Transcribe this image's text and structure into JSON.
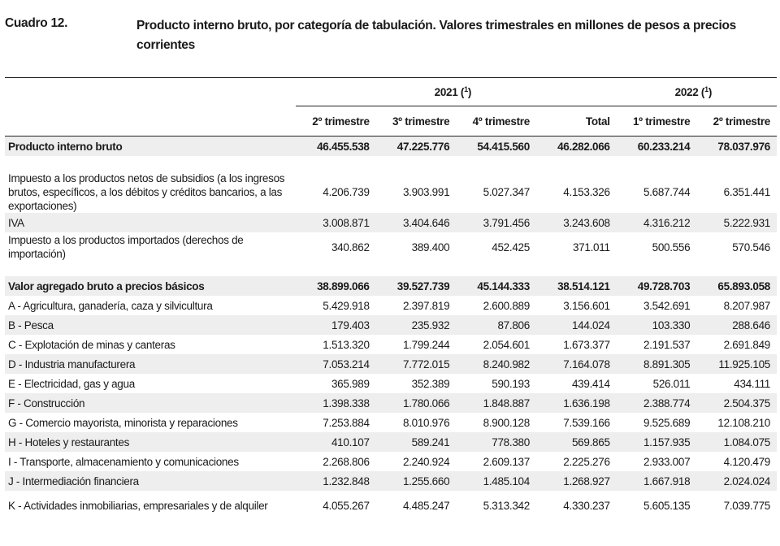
{
  "header": {
    "label": "Cuadro 12.",
    "title": "Producto interno bruto, por categoría de tabulación. Valores trimestrales en millones de pesos a precios corrientes"
  },
  "table": {
    "years": [
      {
        "label": "2021 (",
        "note": "1",
        "close": ")"
      },
      {
        "label": "2022 (",
        "note": "1",
        "close": ")"
      }
    ],
    "periods": [
      "2º trimestre",
      "3º trimestre",
      "4º trimestre",
      "Total",
      "1º trimestre",
      "2º trimestre"
    ],
    "rows": [
      {
        "label": "Producto interno bruto",
        "values": [
          "46.455.538",
          "47.225.776",
          "54.415.560",
          "46.282.066",
          "60.233.214",
          "78.037.976"
        ],
        "bold": true,
        "shade": true,
        "h": "r1"
      },
      {
        "spacer": true
      },
      {
        "label": "Impuesto a los productos netos de subsidios (a los ingresos brutos, específicos, a los débitos y créditos bancarios, a las exportaciones)",
        "values": [
          "4.206.739",
          "3.903.991",
          "5.027.347",
          "4.153.326",
          "5.687.744",
          "6.351.441"
        ],
        "h": "r3"
      },
      {
        "label": "IVA",
        "values": [
          "3.008.871",
          "3.404.646",
          "3.791.456",
          "3.243.608",
          "4.316.212",
          "5.222.931"
        ],
        "shade": true,
        "h": "r1"
      },
      {
        "label": "Impuesto a los productos importados (derechos de importación)",
        "values": [
          "340.862",
          "389.400",
          "452.425",
          "371.011",
          "500.556",
          "570.546"
        ],
        "h": "r2"
      },
      {
        "spacer": true
      },
      {
        "label": "Valor agregado bruto a precios básicos",
        "values": [
          "38.899.066",
          "39.527.739",
          "45.144.333",
          "38.514.121",
          "49.728.703",
          "65.893.058"
        ],
        "bold": true,
        "shade": true,
        "h": "r1"
      },
      {
        "label": "A - Agricultura, ganadería, caza y silvicultura",
        "values": [
          "5.429.918",
          "2.397.819",
          "2.600.889",
          "3.156.601",
          "3.542.691",
          "8.207.987"
        ],
        "h": "r1"
      },
      {
        "label": "B - Pesca",
        "values": [
          "179.403",
          "235.932",
          "87.806",
          "144.024",
          "103.330",
          "288.646"
        ],
        "shade": true,
        "h": "r1"
      },
      {
        "label": "C - Explotación de minas y canteras",
        "values": [
          "1.513.320",
          "1.799.244",
          "2.054.601",
          "1.673.377",
          "2.191.537",
          "2.691.849"
        ],
        "h": "r1"
      },
      {
        "label": "D - Industria manufacturera",
        "values": [
          "7.053.214",
          "7.772.015",
          "8.240.982",
          "7.164.078",
          "8.891.305",
          "11.925.105"
        ],
        "shade": true,
        "h": "r1"
      },
      {
        "label": "E - Electricidad, gas y agua",
        "values": [
          "365.989",
          "352.389",
          "590.193",
          "439.414",
          "526.011",
          "434.111"
        ],
        "h": "r1"
      },
      {
        "label": "F - Construcción",
        "values": [
          "1.398.338",
          "1.780.066",
          "1.848.887",
          "1.636.198",
          "2.388.774",
          "2.504.375"
        ],
        "shade": true,
        "h": "r1"
      },
      {
        "label": "G - Comercio mayorista, minorista y reparaciones",
        "values": [
          "7.253.884",
          "8.010.976",
          "8.900.128",
          "7.539.166",
          "9.525.689",
          "12.108.210"
        ],
        "h": "r1"
      },
      {
        "label": "H - Hoteles y restaurantes",
        "values": [
          "410.107",
          "589.241",
          "778.380",
          "569.865",
          "1.157.935",
          "1.084.075"
        ],
        "shade": true,
        "h": "r1"
      },
      {
        "label": "I - Transporte, almacenamiento y comunicaciones",
        "values": [
          "2.268.806",
          "2.240.924",
          "2.609.137",
          "2.225.276",
          "2.933.007",
          "4.120.479"
        ],
        "h": "r1"
      },
      {
        "label": "J - Intermediación financiera",
        "values": [
          "1.232.848",
          "1.255.660",
          "1.485.104",
          "1.268.927",
          "1.667.918",
          "2.024.024"
        ],
        "shade": true,
        "h": "r1"
      },
      {
        "label": "K - Actividades inmobiliarias, empresariales y de alquiler",
        "values": [
          "4.055.267",
          "4.485.247",
          "5.313.342",
          "4.330.237",
          "5.605.135",
          "7.039.775"
        ],
        "h": "r2"
      }
    ]
  }
}
